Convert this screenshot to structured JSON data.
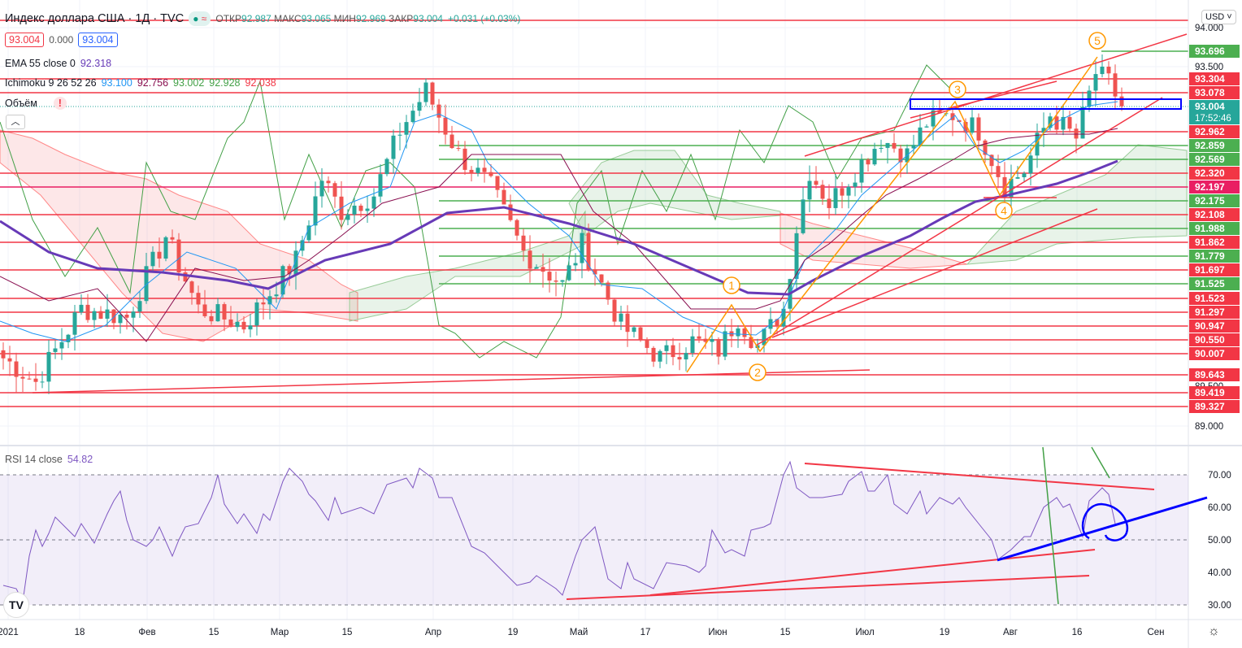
{
  "header": {
    "symbol": "Индекс доллара США · 1Д · TVC",
    "ohlc": [
      {
        "k": "ОТКР",
        "v": "92.987"
      },
      {
        "k": "МАКС",
        "v": "93.065"
      },
      {
        "k": "МИН",
        "v": "92.969"
      },
      {
        "k": "ЗАКР",
        "v": "93.004"
      }
    ],
    "change": "+0.031 (+0.03%)",
    "sell": "93.004",
    "spread": "0.000",
    "buy": "93.004",
    "currency": "USD"
  },
  "indicators": {
    "ema_label": "EMA 55 close 0",
    "ema_value": "92.318",
    "ichimoku_label": "Ichimoku 9 26 52 26",
    "ichimoku_values": [
      "93.100",
      "92.756",
      "93.002",
      "92.928",
      "92.038"
    ],
    "volume_label": "Объём",
    "rsi_label": "RSI 14 close",
    "rsi_value": "54.82"
  },
  "colors": {
    "up": "#26a69a",
    "down": "#ef5350",
    "ema": "#673ab7",
    "tenkan": "#2196f3",
    "kijun": "#880e4f",
    "chikou": "#43a047",
    "level_red": "#f23645",
    "level_green": "#4caf50",
    "rsi": "#7e57c2",
    "drawing_blue": "#0000ff",
    "wave": "#ff9800"
  },
  "chart_data": {
    "type": "candlestick",
    "title": "Индекс доллара США · 1Д · TVC",
    "ylim": [
      88.75,
      94.3
    ],
    "close_anchors": [
      [
        0,
        89.85
      ],
      [
        5,
        89.55
      ],
      [
        12,
        90.47
      ],
      [
        19,
        90.36
      ],
      [
        25,
        91.38
      ],
      [
        30,
        90.47
      ],
      [
        37,
        90.26
      ],
      [
        41,
        90.67
      ],
      [
        45,
        91.08
      ],
      [
        49,
        92.1
      ],
      [
        52,
        91.69
      ],
      [
        57,
        91.9
      ],
      [
        61,
        92.7
      ],
      [
        65,
        93.2
      ],
      [
        70,
        92.4
      ],
      [
        75,
        91.99
      ],
      [
        80,
        91.18
      ],
      [
        86,
        90.77
      ],
      [
        89,
        91.28
      ],
      [
        95,
        90.26
      ],
      [
        101,
        89.85
      ],
      [
        106,
        90.06
      ],
      [
        110,
        89.95
      ],
      [
        113,
        90.36
      ],
      [
        116,
        90.0
      ],
      [
        120,
        90.47
      ],
      [
        122,
        91.48
      ],
      [
        124,
        92.2
      ],
      [
        127,
        91.79
      ],
      [
        132,
        92.3
      ],
      [
        135,
        92.6
      ],
      [
        139,
        92.4
      ],
      [
        142,
        92.8
      ],
      [
        146,
        92.9
      ],
      [
        150,
        92.7
      ],
      [
        154,
        92.0
      ],
      [
        157,
        92.2
      ],
      [
        161,
        92.9
      ],
      [
        165,
        92.6
      ],
      [
        168,
        93.42
      ],
      [
        170,
        93.3
      ],
      [
        172,
        93.004
      ]
    ],
    "price_axis_ticks": [
      "94.000",
      "93.500",
      "89.500",
      "89.000"
    ],
    "price_levels": [
      {
        "v": "93.696",
        "c": "green"
      },
      {
        "v": "93.304",
        "c": "red"
      },
      {
        "v": "93.078",
        "c": "red"
      },
      {
        "v": "93.004",
        "c": "current",
        "time": "17:52:46"
      },
      {
        "v": "92.962",
        "c": "red"
      },
      {
        "v": "92.859",
        "c": "green"
      },
      {
        "v": "92.569",
        "c": "green"
      },
      {
        "v": "92.320",
        "c": "red"
      },
      {
        "v": "92.197",
        "c": "pink"
      },
      {
        "v": "92.175",
        "c": "green"
      },
      {
        "v": "92.108",
        "c": "red"
      },
      {
        "v": "91.988",
        "c": "green"
      },
      {
        "v": "91.862",
        "c": "red"
      },
      {
        "v": "91.779",
        "c": "green"
      },
      {
        "v": "91.697",
        "c": "red"
      },
      {
        "v": "91.525",
        "c": "green"
      },
      {
        "v": "91.523",
        "c": "red"
      },
      {
        "v": "91.297",
        "c": "red"
      },
      {
        "v": "90.947",
        "c": "red"
      },
      {
        "v": "90.550",
        "c": "red"
      },
      {
        "v": "90.007",
        "c": "red"
      },
      {
        "v": "89.643",
        "c": "red"
      },
      {
        "v": "89.419",
        "c": "red"
      },
      {
        "v": "89.327",
        "c": "red"
      }
    ],
    "x_labels": [
      "2021",
      "18",
      "Фев",
      "15",
      "Мар",
      "15",
      "Апр",
      "19",
      "Май",
      "17",
      "Июн",
      "15",
      "Июл",
      "19",
      "Авг",
      "16",
      "Сен"
    ],
    "wave_labels": [
      "1",
      "2",
      "3",
      "4",
      "5"
    ],
    "rsi": {
      "ylim": [
        25,
        75
      ],
      "ticks": [
        "70.00",
        "60.00",
        "50.00",
        "40.00",
        "30.00"
      ],
      "anchors": [
        [
          0,
          36
        ],
        [
          2,
          35
        ],
        [
          3,
          31
        ],
        [
          4,
          45
        ],
        [
          5,
          53
        ],
        [
          6,
          48
        ],
        [
          7,
          52
        ],
        [
          8,
          57
        ],
        [
          9,
          55
        ],
        [
          11,
          51
        ],
        [
          12,
          55
        ],
        [
          14,
          49
        ],
        [
          16,
          58
        ],
        [
          17,
          62
        ],
        [
          18,
          65
        ],
        [
          19,
          56
        ],
        [
          20,
          50
        ],
        [
          22,
          48
        ],
        [
          23,
          50
        ],
        [
          24,
          54
        ],
        [
          26,
          45
        ],
        [
          27,
          50
        ],
        [
          28,
          54
        ],
        [
          30,
          55
        ],
        [
          32,
          63
        ],
        [
          33,
          70
        ],
        [
          34,
          61
        ],
        [
          36,
          55
        ],
        [
          37,
          58
        ],
        [
          39,
          52
        ],
        [
          40,
          58
        ],
        [
          41,
          56
        ],
        [
          43,
          68
        ],
        [
          44,
          72
        ],
        [
          46,
          68
        ],
        [
          47,
          64
        ],
        [
          48,
          62
        ],
        [
          50,
          56
        ],
        [
          51,
          63
        ],
        [
          52,
          58
        ],
        [
          55,
          60
        ],
        [
          57,
          58
        ],
        [
          59,
          67
        ],
        [
          62,
          69
        ],
        [
          63,
          66
        ],
        [
          64,
          72
        ],
        [
          66,
          69
        ],
        [
          67,
          63
        ],
        [
          69,
          63
        ],
        [
          70,
          58
        ],
        [
          72,
          48
        ],
        [
          74,
          46
        ],
        [
          76,
          42
        ],
        [
          79,
          36
        ],
        [
          81,
          37
        ],
        [
          82,
          39
        ],
        [
          85,
          35
        ],
        [
          86,
          33
        ],
        [
          88,
          45
        ],
        [
          89,
          50
        ],
        [
          91,
          54
        ],
        [
          93,
          38
        ],
        [
          95,
          35
        ],
        [
          96,
          43
        ],
        [
          97,
          38
        ],
        [
          100,
          35
        ],
        [
          102,
          43
        ],
        [
          105,
          42
        ],
        [
          107,
          40
        ],
        [
          108,
          42
        ],
        [
          109,
          53
        ],
        [
          111,
          46
        ],
        [
          112,
          47
        ],
        [
          114,
          45
        ],
        [
          115,
          53
        ],
        [
          117,
          54
        ],
        [
          118,
          55
        ],
        [
          120,
          70
        ],
        [
          121,
          74
        ],
        [
          122,
          66
        ],
        [
          124,
          63
        ],
        [
          126,
          63
        ],
        [
          129,
          64
        ],
        [
          130,
          68
        ],
        [
          132,
          71
        ],
        [
          133,
          65
        ],
        [
          134,
          65
        ],
        [
          136,
          70
        ],
        [
          137,
          61
        ],
        [
          139,
          58
        ],
        [
          141,
          65
        ],
        [
          142,
          58
        ],
        [
          144,
          63
        ],
        [
          146,
          61
        ],
        [
          147,
          63
        ],
        [
          148,
          60
        ],
        [
          150,
          55
        ],
        [
          152,
          50
        ],
        [
          153,
          44
        ],
        [
          155,
          47
        ],
        [
          157,
          51
        ],
        [
          158,
          51
        ],
        [
          160,
          60
        ],
        [
          162,
          63
        ],
        [
          163,
          60
        ],
        [
          164,
          61
        ],
        [
          166,
          51
        ],
        [
          167,
          62
        ],
        [
          169,
          66
        ],
        [
          170,
          64
        ],
        [
          171,
          55
        ]
      ]
    }
  }
}
